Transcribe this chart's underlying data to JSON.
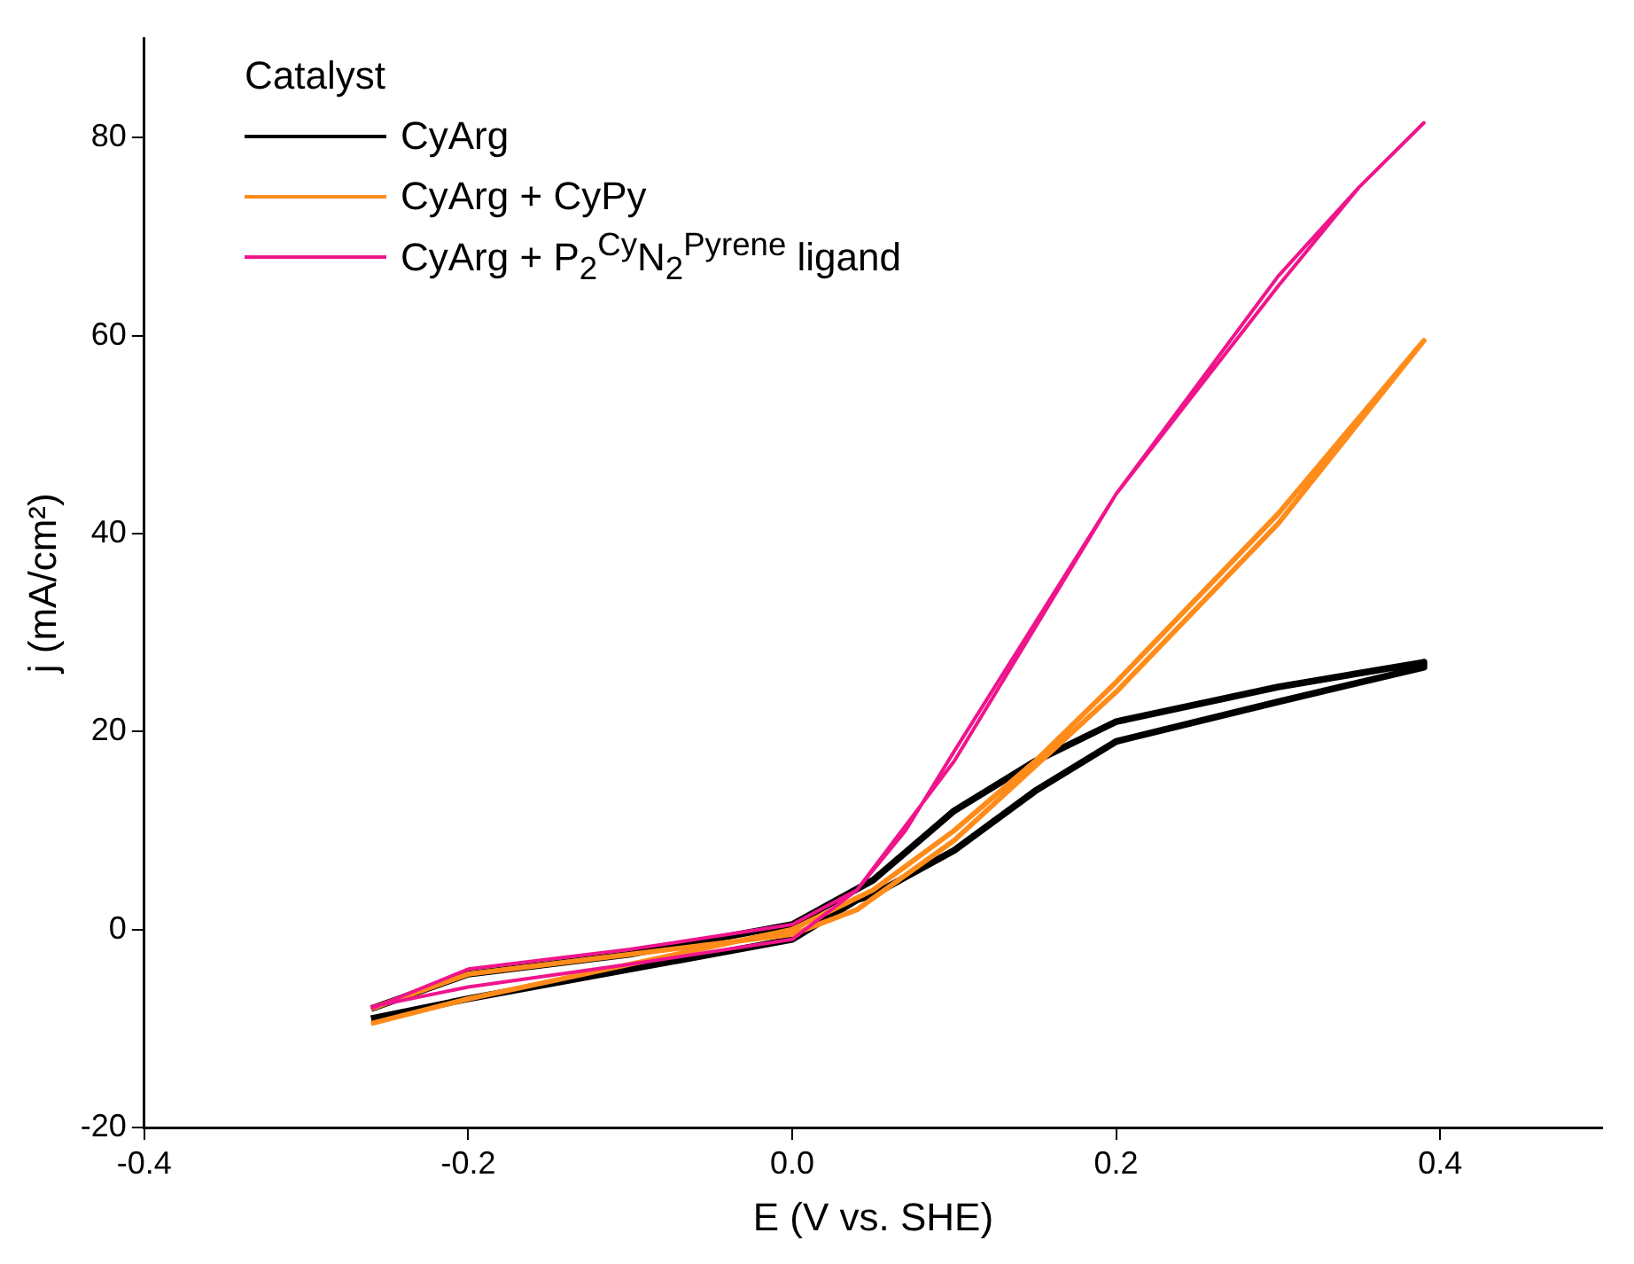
{
  "chart_data": {
    "type": "line",
    "xlabel": "E (V vs. SHE)",
    "ylabel": "j (mA/cm²)",
    "legend_title": "Catalyst",
    "legend": "top left",
    "grid": false,
    "marker": "none",
    "line_style": "solid",
    "xlim": [
      -0.4,
      0.5
    ],
    "xticks": [
      -0.4,
      -0.2,
      {
        "value": 0,
        "label": "0.0"
      },
      0.2,
      0.4
    ],
    "ylim": [
      -20,
      90
    ],
    "yticks": [
      -20,
      0,
      20,
      40,
      60,
      80
    ],
    "series": [
      {
        "name": "CyArg",
        "color": "#000000",
        "x": [
          -0.26,
          -0.2,
          -0.1,
          0,
          0.05,
          0.1,
          0.15,
          0.2,
          0.3,
          0.39,
          0.39,
          0.3,
          0.2,
          0.15,
          0.1,
          0.05,
          0.04,
          0,
          -0.1,
          -0.2,
          -0.26
        ],
        "values": [
          -8,
          -4.5,
          -2.5,
          0.5,
          5,
          12,
          17,
          21,
          24.5,
          27,
          26.5,
          23,
          19,
          14,
          8,
          3.5,
          3,
          -1,
          -4,
          -7,
          -9
        ]
      },
      {
        "name": "CyArg + CyPy",
        "color": "#ff8c1a",
        "x": [
          -0.26,
          -0.2,
          -0.1,
          0,
          0.05,
          0.1,
          0.15,
          0.2,
          0.3,
          0.39,
          0.3,
          0.2,
          0.1,
          0.04,
          0,
          -0.1,
          -0.2,
          -0.26
        ],
        "values": [
          -9.5,
          -7,
          -3.5,
          0,
          4,
          10,
          17,
          25,
          42,
          59.5,
          41,
          24,
          9,
          2,
          -0.5,
          -2.5,
          -4.5,
          -8
        ]
      },
      {
        "name": "CyArg + P$_{2}$$^{Cy}$N$_{2}$$^{Pyrene}$ ligand",
        "color": "#f0148c",
        "x": [
          -0.26,
          -0.2,
          -0.1,
          0,
          0.04,
          0.07,
          0.1,
          0.15,
          0.2,
          0.25,
          0.3,
          0.35,
          0.39,
          0.35,
          0.3,
          0.2,
          0.1,
          0.04,
          0,
          -0.1,
          -0.2,
          -0.26
        ],
        "values": [
          -8,
          -4,
          -2,
          0.5,
          4,
          10,
          18,
          31,
          44,
          55,
          66,
          75,
          81.5,
          75,
          65,
          44,
          17,
          4,
          -1,
          -3.5,
          -5.8,
          -7.8
        ]
      }
    ]
  }
}
